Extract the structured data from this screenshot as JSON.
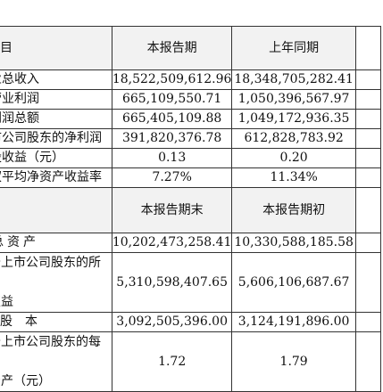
{
  "header1": {
    "label": "项目",
    "period": "本报告期",
    "prior": "上年同期"
  },
  "income_rows": [
    {
      "label": "营业总收入",
      "current": "18,522,509,612.96",
      "prior": "18,348,705,282.41"
    },
    {
      "label": "营业利润",
      "current": "665,109,550.71",
      "prior": "1,050,396,567.97"
    },
    {
      "label": "利润总额",
      "current": "665,405,109.88",
      "prior": "1,049,172,936.35"
    },
    {
      "label": "归属于上市公司股东的净利润",
      "current": "391,820,376.78",
      "prior": "612,828,783.92"
    },
    {
      "label": "基本每股收益（元）",
      "current": "0.13",
      "prior": "0.20"
    },
    {
      "label": "加权平均净资产收益率",
      "current": "7.27%",
      "prior": "11.34%"
    }
  ],
  "header2": {
    "period_end": "本报告期末",
    "period_start": "本报告期初"
  },
  "balance_rows": [
    {
      "label": "总资产",
      "current": "10,202,473,258.41",
      "prior": "10,330,588,185.58"
    },
    {
      "label_line1": "归属于上市公司股东的所有者",
      "label_line2": "权益",
      "current": "5,310,598,407.65",
      "prior": "5,606,106,687.67"
    },
    {
      "label": "股本",
      "current": "3,092,505,396.00",
      "prior": "3,124,191,896.00"
    },
    {
      "label_line1": "归属于上市公司股东的每股净",
      "label_line2": "资产（元）",
      "current": "1.72",
      "prior": "1.79"
    }
  ]
}
